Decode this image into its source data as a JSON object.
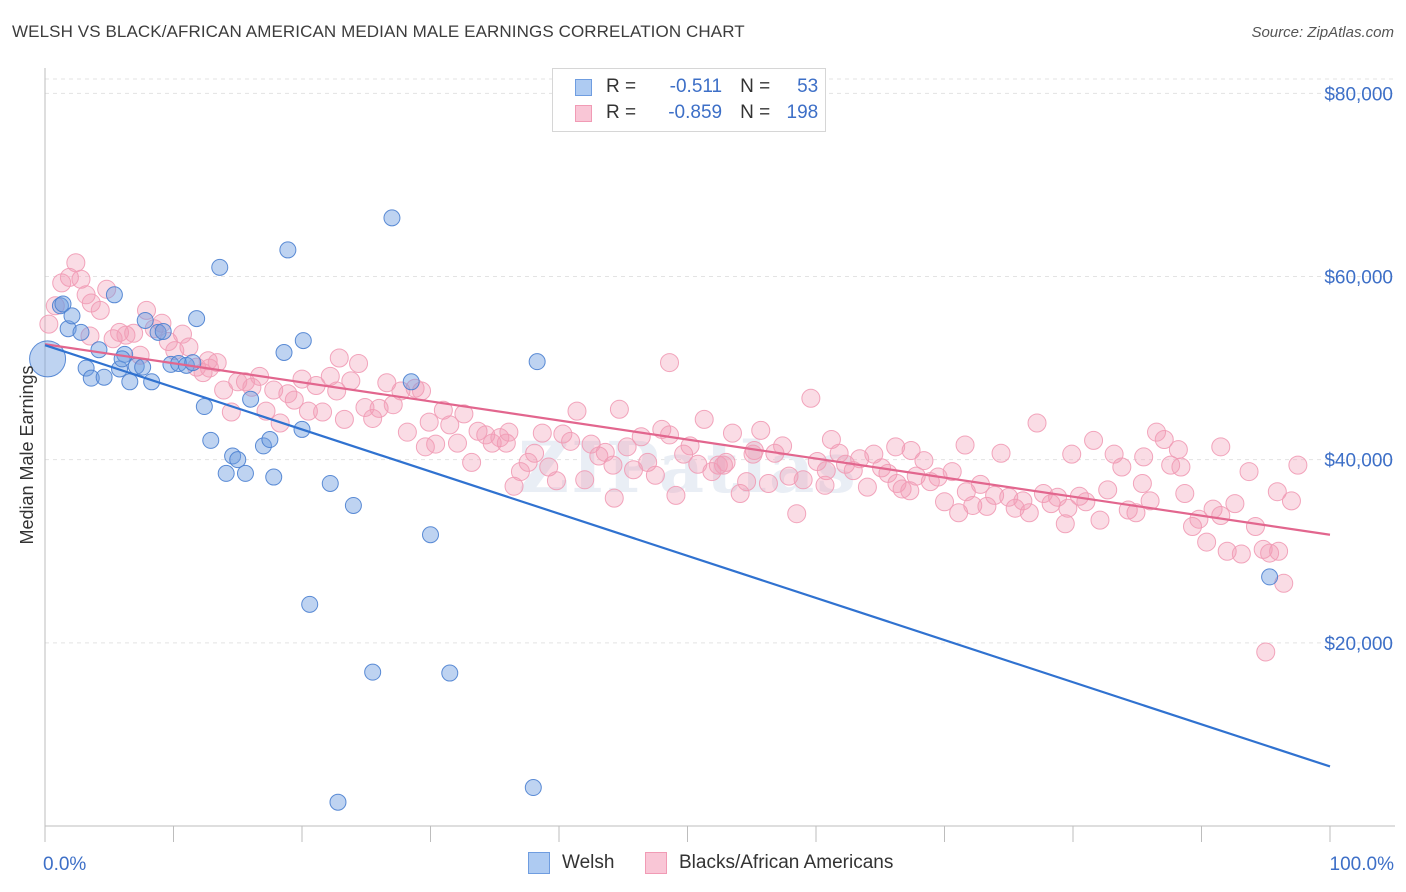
{
  "header": {
    "title": "WELSH VS BLACK/AFRICAN AMERICAN MEDIAN MALE EARNINGS CORRELATION CHART",
    "source": "Source: ZipAtlas.com"
  },
  "legend": {
    "welsh": {
      "r_label": "R =",
      "r_value": "-0.511",
      "n_label": "N =",
      "n_value": "53"
    },
    "black": {
      "r_label": "R =",
      "r_value": "-0.859",
      "n_label": "N =",
      "n_value": "198"
    }
  },
  "bottom_legend": {
    "welsh": "Welsh",
    "black": "Blacks/African Americans"
  },
  "colors": {
    "welsh": "#6f9de0",
    "welsh_line": "#3072d0",
    "black": "#f19bb5",
    "black_line": "#e2668e",
    "tick_label": "#3d6fc7",
    "grid": "#e3e3e3"
  },
  "chart_data": {
    "type": "scatter",
    "ylabel": "Median Male Earnings",
    "xlabel": "",
    "x_tick_labels": [
      "0.0%",
      "100.0%"
    ],
    "y_tick_labels": [
      "$20,000",
      "$40,000",
      "$60,000",
      "$80,000"
    ],
    "y_ticks": [
      20000,
      40000,
      60000,
      80000
    ],
    "xlim": [
      0,
      100
    ],
    "ylim": [
      0,
      82000
    ],
    "grid": true,
    "legend_position": "top-center",
    "watermark": "ZIPatlas",
    "series": [
      {
        "name": "Welsh",
        "trend": {
          "x0": 0,
          "y0": 52500,
          "x1": 100,
          "y1": 6500
        },
        "points": [
          [
            0.2,
            51000
          ],
          [
            1.2,
            56800
          ],
          [
            1.4,
            57000
          ],
          [
            1.8,
            54300
          ],
          [
            2.1,
            55700
          ],
          [
            2.8,
            53900
          ],
          [
            3.2,
            50000
          ],
          [
            3.6,
            48900
          ],
          [
            4.2,
            52000
          ],
          [
            4.6,
            49000
          ],
          [
            5.4,
            58000
          ],
          [
            5.8,
            49900
          ],
          [
            6.2,
            51500
          ],
          [
            6.6,
            48500
          ],
          [
            7.1,
            50200
          ],
          [
            7.6,
            50100
          ],
          [
            8.3,
            48500
          ],
          [
            7.8,
            55200
          ],
          [
            8.8,
            53900
          ],
          [
            9.8,
            50400
          ],
          [
            10.4,
            50500
          ],
          [
            11.0,
            50300
          ],
          [
            11.8,
            55400
          ],
          [
            12.4,
            45800
          ],
          [
            12.9,
            42100
          ],
          [
            13.6,
            61000
          ],
          [
            14.1,
            38500
          ],
          [
            14.6,
            40400
          ],
          [
            15.0,
            40000
          ],
          [
            15.6,
            38500
          ],
          [
            16.0,
            46600
          ],
          [
            17.0,
            41500
          ],
          [
            17.5,
            42200
          ],
          [
            17.8,
            38100
          ],
          [
            18.6,
            51700
          ],
          [
            18.9,
            62900
          ],
          [
            20.0,
            43300
          ],
          [
            20.6,
            24200
          ],
          [
            22.2,
            37400
          ],
          [
            22.8,
            2600
          ],
          [
            24.0,
            35000
          ],
          [
            25.5,
            16800
          ],
          [
            27.0,
            66400
          ],
          [
            28.5,
            48500
          ],
          [
            30.0,
            31800
          ],
          [
            31.5,
            16700
          ],
          [
            38.3,
            50700
          ],
          [
            38.0,
            4200
          ],
          [
            20.1,
            53000
          ],
          [
            11.5,
            50600
          ],
          [
            95.3,
            27200
          ],
          [
            6.0,
            51000
          ],
          [
            9.2,
            54000
          ]
        ]
      },
      {
        "name": "Blacks/African Americans",
        "trend": {
          "x0": 0,
          "y0": 52600,
          "x1": 100,
          "y1": 31800
        },
        "points": [
          [
            0.3,
            54800
          ],
          [
            0.8,
            56800
          ],
          [
            1.3,
            59300
          ],
          [
            1.9,
            59900
          ],
          [
            2.4,
            61500
          ],
          [
            2.8,
            59700
          ],
          [
            3.2,
            58000
          ],
          [
            3.6,
            57100
          ],
          [
            4.3,
            56300
          ],
          [
            4.8,
            58600
          ],
          [
            5.3,
            53200
          ],
          [
            5.8,
            53900
          ],
          [
            6.3,
            53600
          ],
          [
            6.9,
            53800
          ],
          [
            7.4,
            51400
          ],
          [
            7.9,
            56300
          ],
          [
            8.5,
            54300
          ],
          [
            9.1,
            54900
          ],
          [
            9.6,
            52900
          ],
          [
            10.1,
            51900
          ],
          [
            10.7,
            53700
          ],
          [
            11.2,
            52300
          ],
          [
            11.8,
            50100
          ],
          [
            12.3,
            49500
          ],
          [
            12.8,
            50000
          ],
          [
            13.4,
            50600
          ],
          [
            13.9,
            47600
          ],
          [
            14.5,
            45200
          ],
          [
            15.0,
            48500
          ],
          [
            15.6,
            48500
          ],
          [
            16.1,
            47900
          ],
          [
            16.7,
            49100
          ],
          [
            17.2,
            45300
          ],
          [
            17.8,
            47600
          ],
          [
            18.3,
            44000
          ],
          [
            18.9,
            47200
          ],
          [
            19.4,
            46500
          ],
          [
            20.0,
            48800
          ],
          [
            20.5,
            45300
          ],
          [
            21.1,
            48100
          ],
          [
            21.6,
            45200
          ],
          [
            22.2,
            49100
          ],
          [
            22.7,
            47500
          ],
          [
            23.3,
            44400
          ],
          [
            23.8,
            48600
          ],
          [
            24.4,
            50500
          ],
          [
            24.9,
            45700
          ],
          [
            25.5,
            44500
          ],
          [
            26.0,
            45600
          ],
          [
            26.6,
            48400
          ],
          [
            27.1,
            46000
          ],
          [
            27.7,
            47500
          ],
          [
            28.2,
            43000
          ],
          [
            28.8,
            47800
          ],
          [
            29.3,
            47500
          ],
          [
            29.9,
            44100
          ],
          [
            30.4,
            41700
          ],
          [
            31.0,
            45400
          ],
          [
            31.5,
            43800
          ],
          [
            32.1,
            41800
          ],
          [
            32.6,
            45000
          ],
          [
            33.2,
            39700
          ],
          [
            33.7,
            43100
          ],
          [
            34.3,
            42700
          ],
          [
            34.8,
            41800
          ],
          [
            35.4,
            42400
          ],
          [
            35.9,
            41800
          ],
          [
            36.5,
            37100
          ],
          [
            37.0,
            38700
          ],
          [
            37.6,
            39700
          ],
          [
            38.1,
            40700
          ],
          [
            38.7,
            42900
          ],
          [
            39.2,
            39200
          ],
          [
            39.8,
            37700
          ],
          [
            40.3,
            42800
          ],
          [
            40.9,
            42000
          ],
          [
            41.4,
            45300
          ],
          [
            42.0,
            37800
          ],
          [
            42.5,
            41700
          ],
          [
            43.1,
            40400
          ],
          [
            43.6,
            40800
          ],
          [
            44.2,
            39400
          ],
          [
            44.7,
            45500
          ],
          [
            45.3,
            41400
          ],
          [
            45.8,
            38900
          ],
          [
            46.4,
            42500
          ],
          [
            46.9,
            39700
          ],
          [
            47.5,
            38300
          ],
          [
            48.0,
            43300
          ],
          [
            48.6,
            42700
          ],
          [
            49.1,
            36100
          ],
          [
            49.7,
            40600
          ],
          [
            50.2,
            41500
          ],
          [
            50.8,
            39500
          ],
          [
            51.3,
            44400
          ],
          [
            51.9,
            38700
          ],
          [
            52.4,
            39400
          ],
          [
            53.0,
            39700
          ],
          [
            53.5,
            42900
          ],
          [
            54.1,
            36300
          ],
          [
            54.6,
            37600
          ],
          [
            55.2,
            41000
          ],
          [
            55.7,
            43200
          ],
          [
            56.3,
            37400
          ],
          [
            56.8,
            40700
          ],
          [
            57.4,
            41500
          ],
          [
            57.9,
            38200
          ],
          [
            58.5,
            34100
          ],
          [
            59.0,
            37800
          ],
          [
            59.6,
            46700
          ],
          [
            60.1,
            39800
          ],
          [
            60.7,
            37200
          ],
          [
            61.2,
            42200
          ],
          [
            61.8,
            40700
          ],
          [
            62.3,
            39500
          ],
          [
            62.9,
            38800
          ],
          [
            63.4,
            40100
          ],
          [
            64.0,
            37000
          ],
          [
            64.5,
            40600
          ],
          [
            65.1,
            39100
          ],
          [
            65.6,
            38500
          ],
          [
            66.2,
            41400
          ],
          [
            66.7,
            36800
          ],
          [
            67.3,
            36600
          ],
          [
            67.8,
            38200
          ],
          [
            68.4,
            39900
          ],
          [
            68.9,
            37600
          ],
          [
            69.5,
            38100
          ],
          [
            70.0,
            35400
          ],
          [
            70.6,
            38700
          ],
          [
            71.1,
            34200
          ],
          [
            71.7,
            36500
          ],
          [
            72.2,
            35000
          ],
          [
            72.8,
            37300
          ],
          [
            73.3,
            34900
          ],
          [
            73.9,
            36100
          ],
          [
            74.4,
            40700
          ],
          [
            75.0,
            35900
          ],
          [
            75.5,
            34700
          ],
          [
            76.1,
            35500
          ],
          [
            76.6,
            34200
          ],
          [
            77.2,
            44000
          ],
          [
            77.7,
            36300
          ],
          [
            78.3,
            35200
          ],
          [
            78.8,
            35900
          ],
          [
            79.4,
            33000
          ],
          [
            79.9,
            40600
          ],
          [
            80.5,
            36000
          ],
          [
            81.0,
            35400
          ],
          [
            81.6,
            42100
          ],
          [
            82.1,
            33400
          ],
          [
            82.7,
            36700
          ],
          [
            83.2,
            40600
          ],
          [
            83.8,
            39200
          ],
          [
            84.3,
            34500
          ],
          [
            84.9,
            34200
          ],
          [
            85.4,
            37400
          ],
          [
            86.0,
            35500
          ],
          [
            86.5,
            43000
          ],
          [
            87.1,
            42200
          ],
          [
            87.6,
            39400
          ],
          [
            88.2,
            41100
          ],
          [
            88.7,
            36300
          ],
          [
            89.3,
            32700
          ],
          [
            89.8,
            33500
          ],
          [
            90.4,
            31000
          ],
          [
            90.9,
            34600
          ],
          [
            91.5,
            33900
          ],
          [
            92.0,
            30000
          ],
          [
            92.6,
            35200
          ],
          [
            93.1,
            29700
          ],
          [
            93.7,
            38700
          ],
          [
            94.2,
            32700
          ],
          [
            94.8,
            30200
          ],
          [
            95.3,
            29800
          ],
          [
            95.9,
            36500
          ],
          [
            96.4,
            26500
          ],
          [
            97.0,
            35500
          ],
          [
            97.5,
            39400
          ],
          [
            67.4,
            41000
          ],
          [
            22.9,
            51100
          ],
          [
            48.6,
            50600
          ],
          [
            71.6,
            41600
          ],
          [
            85.5,
            40300
          ],
          [
            91.5,
            41400
          ],
          [
            96.0,
            30000
          ],
          [
            60.8,
            38800
          ],
          [
            44.3,
            35800
          ],
          [
            52.8,
            39400
          ],
          [
            79.6,
            34700
          ],
          [
            95.0,
            19000
          ],
          [
            88.4,
            39200
          ],
          [
            3.5,
            53500
          ],
          [
            12.7,
            50800
          ],
          [
            29.6,
            41400
          ],
          [
            36.1,
            43000
          ],
          [
            55.1,
            40600
          ],
          [
            66.3,
            37400
          ]
        ]
      }
    ]
  }
}
